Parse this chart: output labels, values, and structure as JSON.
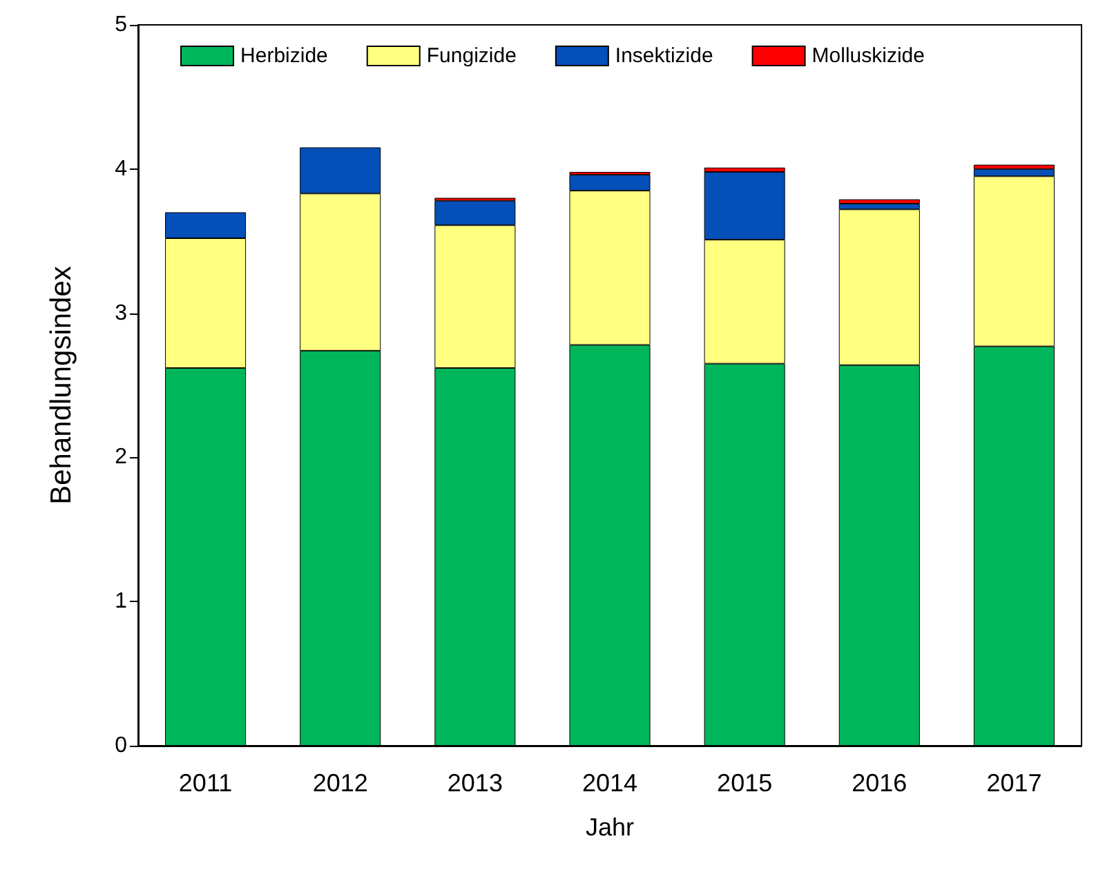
{
  "chart_data": {
    "type": "bar",
    "stacked": true,
    "xlabel": "Jahr",
    "ylabel": "Behandlungsindex",
    "categories": [
      "2011",
      "2012",
      "2013",
      "2014",
      "2015",
      "2016",
      "2017"
    ],
    "series": [
      {
        "name": "Herbizide",
        "color": "#00b65a",
        "values": [
          2.62,
          2.74,
          2.62,
          2.78,
          2.65,
          2.64,
          2.77
        ]
      },
      {
        "name": "Fungizide",
        "color": "#ffff80",
        "values": [
          0.9,
          1.09,
          0.99,
          1.07,
          0.86,
          1.08,
          1.18
        ]
      },
      {
        "name": "Insektizide",
        "color": "#054fb9",
        "values": [
          0.18,
          0.32,
          0.17,
          0.11,
          0.47,
          0.04,
          0.05
        ]
      },
      {
        "name": "Molluskizide",
        "color": "#ff0000",
        "values": [
          null,
          null,
          0.02,
          0.02,
          0.03,
          0.03,
          0.03
        ]
      }
    ],
    "ylim": [
      0,
      5
    ],
    "yticks": [
      0,
      1,
      2,
      3,
      4,
      5
    ],
    "grid": false,
    "legend": "top"
  }
}
